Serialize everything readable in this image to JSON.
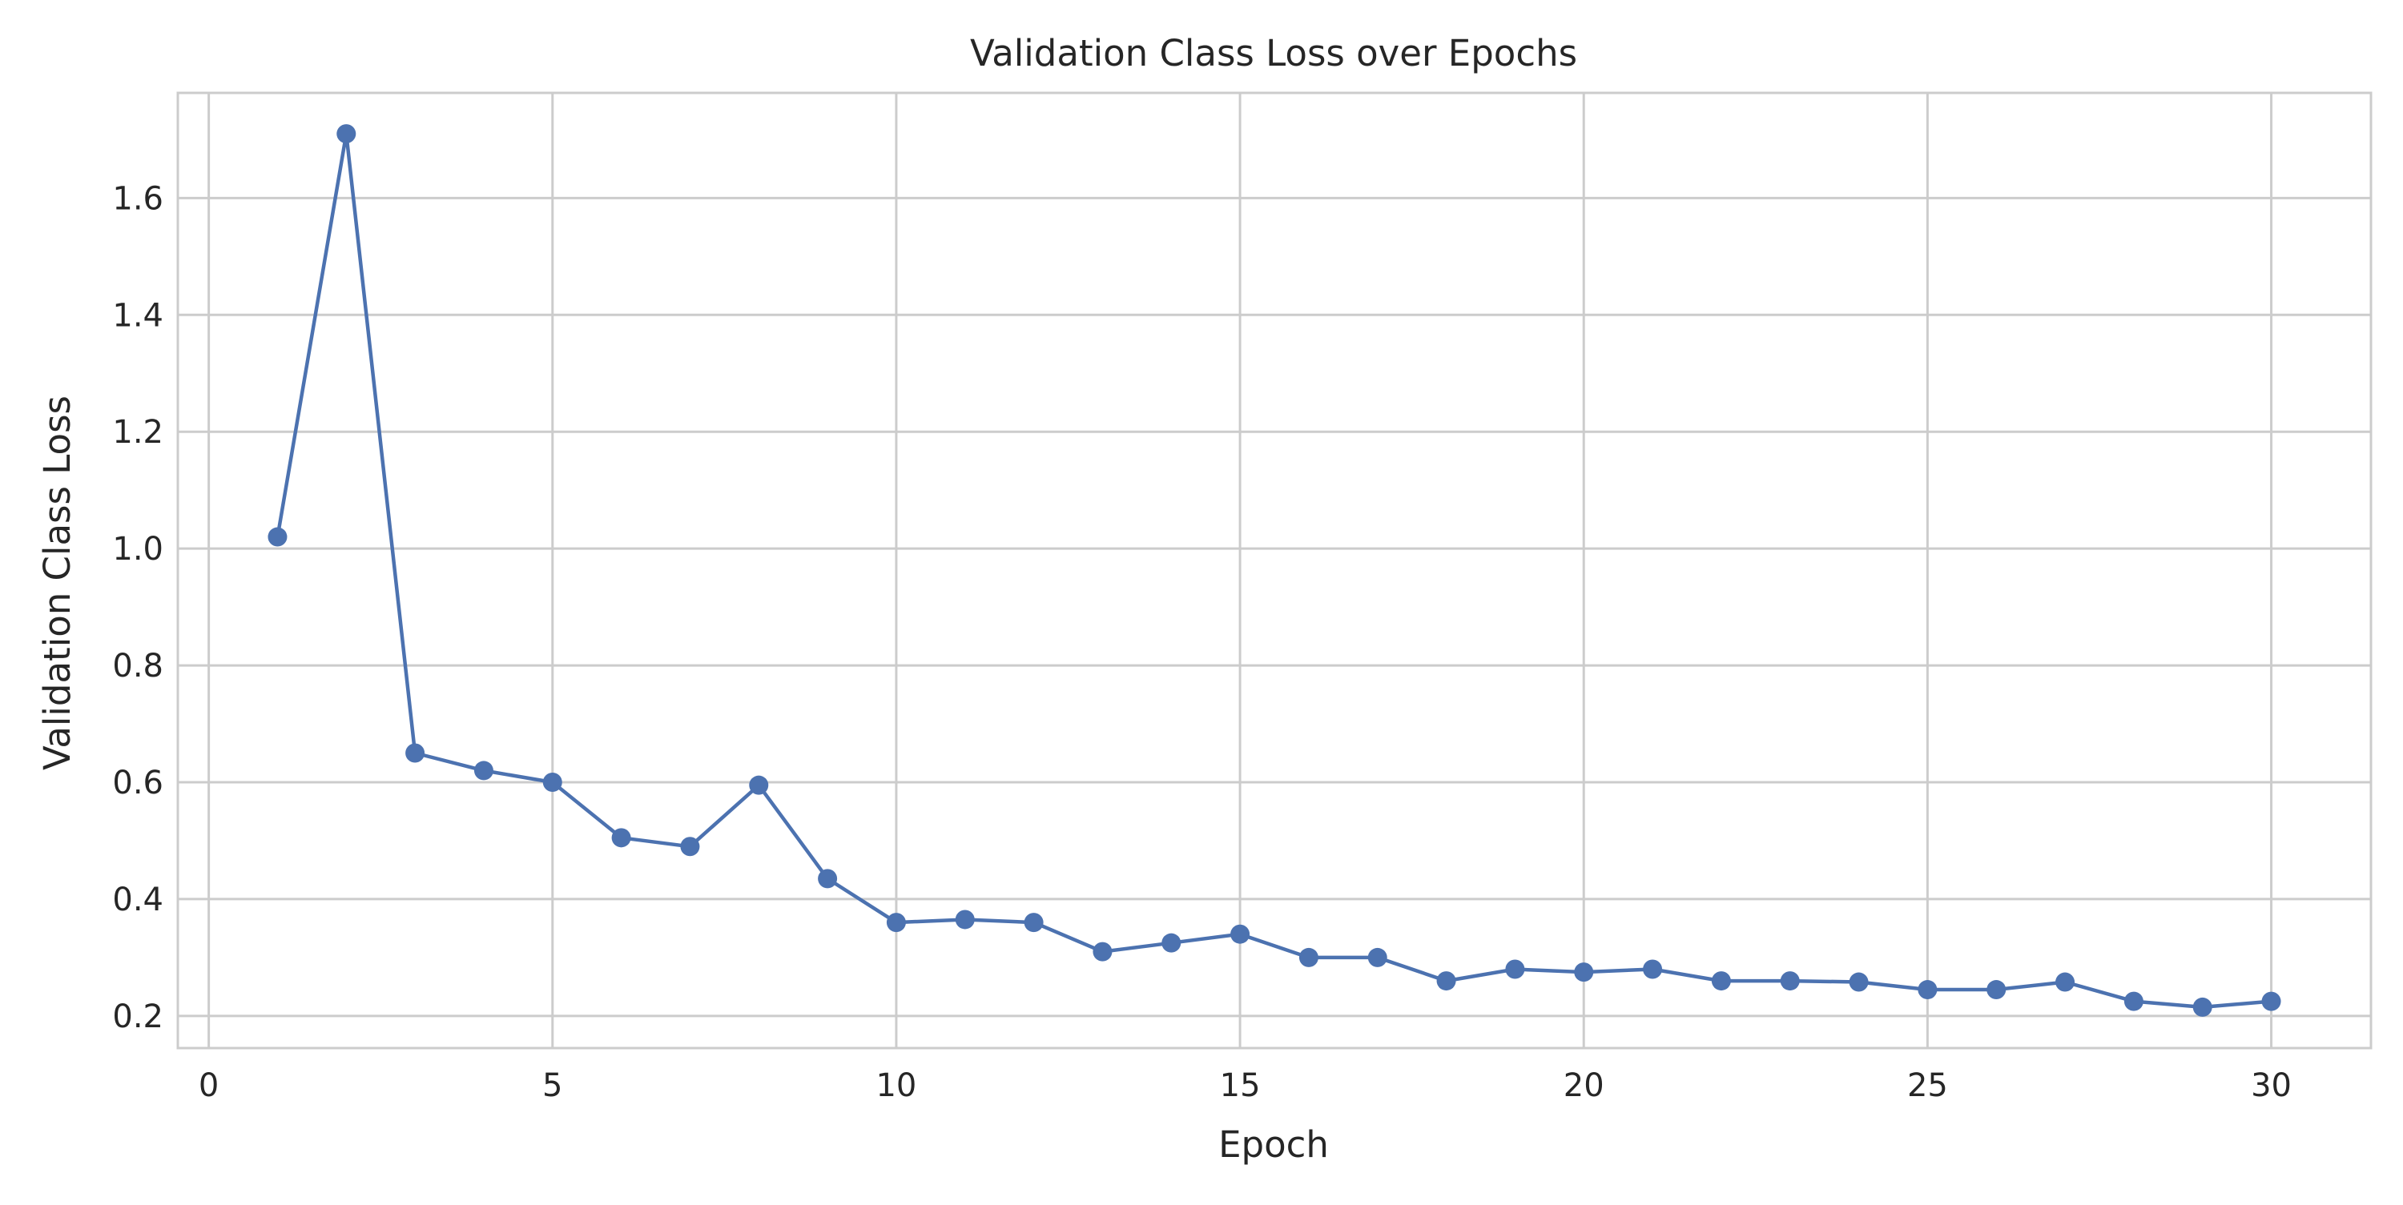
{
  "chart_data": {
    "type": "line",
    "title": "Validation Class Loss over Epochs",
    "xlabel": "Epoch",
    "ylabel": "Validation Class Loss",
    "xlim": [
      -0.45,
      31.45
    ],
    "ylim": [
      0.145,
      1.78
    ],
    "xticks": [
      0,
      5,
      10,
      15,
      20,
      25,
      30
    ],
    "yticks": [
      0.2,
      0.4,
      0.6,
      0.8,
      1.0,
      1.2,
      1.4,
      1.6
    ],
    "ytick_labels": [
      "0.2",
      "0.4",
      "0.6",
      "0.8",
      "1.0",
      "1.2",
      "1.4",
      "1.6"
    ],
    "grid": true,
    "series": [
      {
        "color": "#4c72b0",
        "marker": "circle",
        "x": [
          1,
          2,
          3,
          4,
          5,
          6,
          7,
          8,
          9,
          10,
          11,
          12,
          13,
          14,
          15,
          16,
          17,
          18,
          19,
          20,
          21,
          22,
          23,
          24,
          25,
          26,
          27,
          28,
          29,
          30
        ],
        "y": [
          1.02,
          1.71,
          0.65,
          0.62,
          0.6,
          0.505,
          0.49,
          0.595,
          0.435,
          0.36,
          0.365,
          0.36,
          0.31,
          0.325,
          0.34,
          0.3,
          0.3,
          0.26,
          0.28,
          0.275,
          0.28,
          0.26,
          0.26,
          0.258,
          0.245,
          0.245,
          0.258,
          0.225,
          0.215,
          0.225
        ]
      }
    ]
  }
}
